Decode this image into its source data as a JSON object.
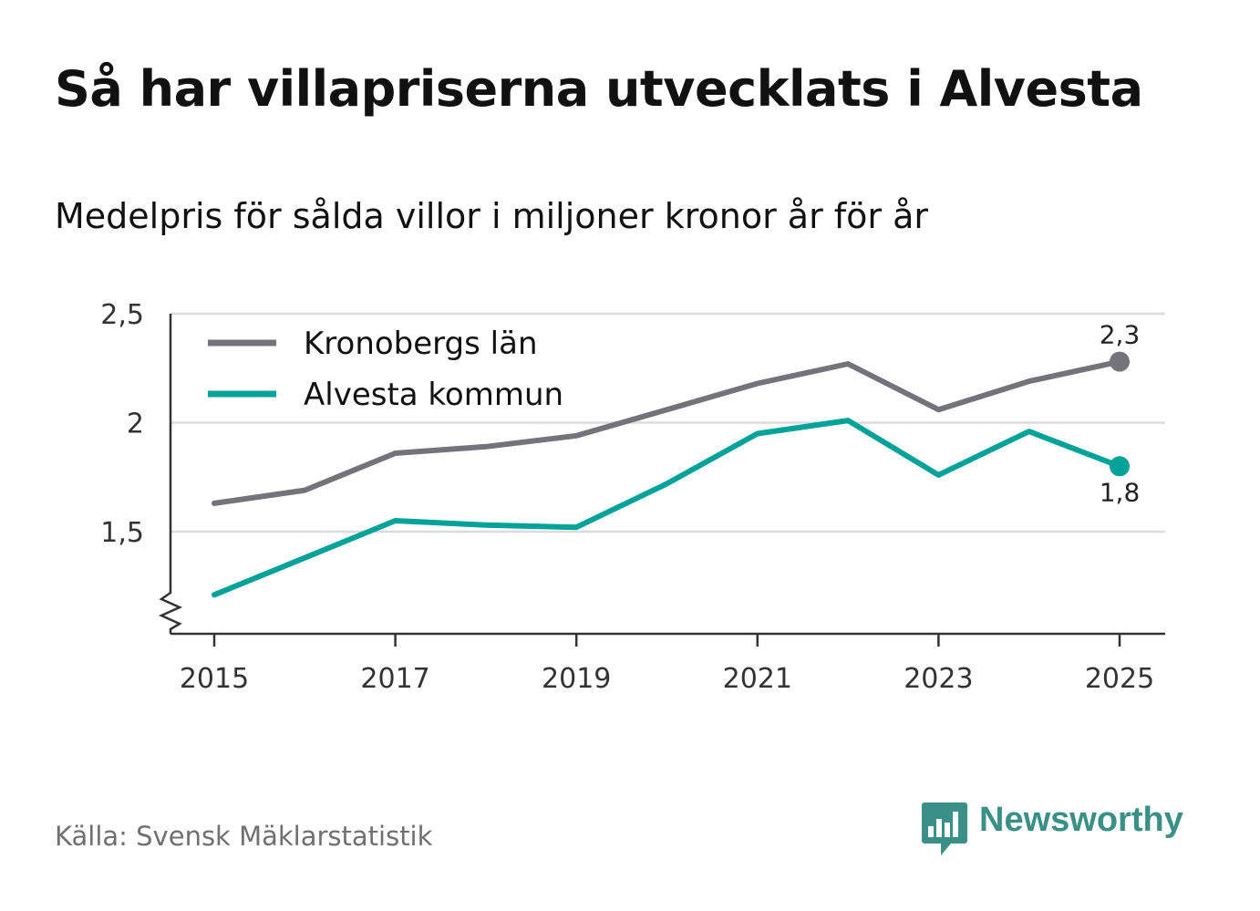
{
  "title": "Så har villapriserna utvecklats i Alvesta",
  "subtitle": "Medelpris för sålda villor i miljoner kronor år för år",
  "source": "Källa: Svensk Mäklarstatistik",
  "brand": {
    "name": "Newsworthy",
    "icon": "bar-chart-speech-bubble-icon",
    "color": "#3a8f87"
  },
  "chart_data": {
    "type": "line",
    "title": "Så har villapriserna utvecklats i Alvesta",
    "subtitle": "Medelpris för sålda villor i miljoner kronor år för år",
    "xlabel": "",
    "ylabel": "",
    "ylim": [
      1.05,
      2.5
    ],
    "y_axis_break": true,
    "grid": true,
    "legend_position": "top-left",
    "x": [
      2015,
      2016,
      2017,
      2018,
      2019,
      2020,
      2021,
      2022,
      2023,
      2024,
      2025
    ],
    "x_tick_labels": [
      "2015",
      "2017",
      "2019",
      "2021",
      "2023",
      "2025"
    ],
    "x_tick_values": [
      2015,
      2017,
      2019,
      2021,
      2023,
      2025
    ],
    "y_ticks": [
      1.5,
      2,
      2.5
    ],
    "y_tick_labels": [
      "1,5",
      "2",
      "2,5"
    ],
    "series": [
      {
        "name": "Kronobergs län",
        "color": "#74737a",
        "values": [
          1.63,
          1.69,
          1.86,
          1.89,
          1.94,
          2.06,
          2.18,
          2.27,
          2.06,
          2.19,
          2.28
        ],
        "end_label": "2,3",
        "end_label_position": "above"
      },
      {
        "name": "Alvesta kommun",
        "color": "#00a29a",
        "values": [
          1.21,
          1.38,
          1.55,
          1.53,
          1.52,
          1.72,
          1.95,
          2.01,
          1.76,
          1.96,
          1.8
        ],
        "end_label": "1,8",
        "end_label_position": "below"
      }
    ]
  }
}
